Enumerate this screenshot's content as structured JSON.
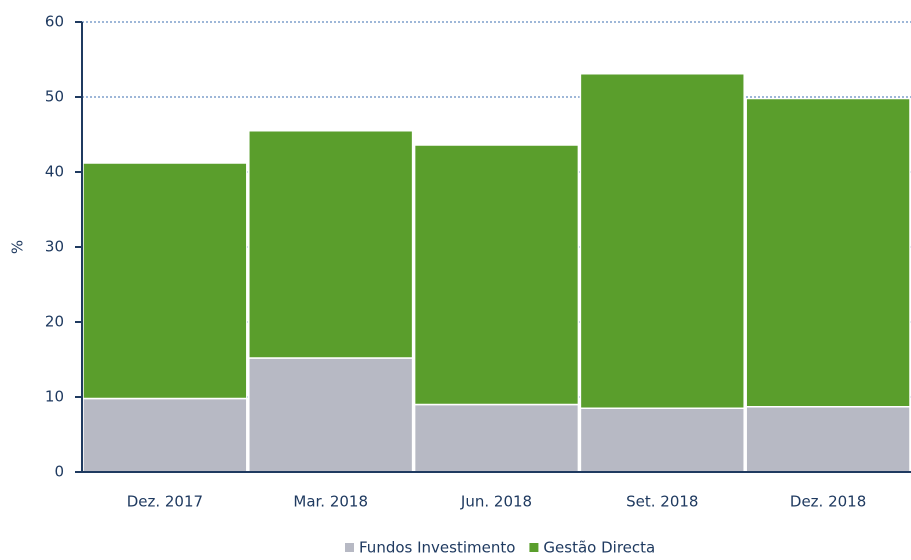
{
  "chart_data": {
    "type": "stacked_bar",
    "y_label": "%",
    "categories": [
      "Dez. 2017",
      "Mar. 2018",
      "Jun. 2018",
      "Set. 2018",
      "Dez. 2018"
    ],
    "series": [
      {
        "name": "Fundos Investimento",
        "color": "#b7b9c4",
        "values": [
          9.8,
          15.2,
          9.0,
          8.5,
          8.7
        ]
      },
      {
        "name": "Gestão Directa",
        "color": "#5a9e2c",
        "values": [
          31.4,
          30.3,
          34.6,
          44.6,
          41.1
        ]
      }
    ],
    "ylim": [
      0,
      60
    ],
    "yticks": [
      0,
      10,
      20,
      30,
      40,
      50,
      60
    ],
    "grid": true,
    "legend": "bottom"
  }
}
